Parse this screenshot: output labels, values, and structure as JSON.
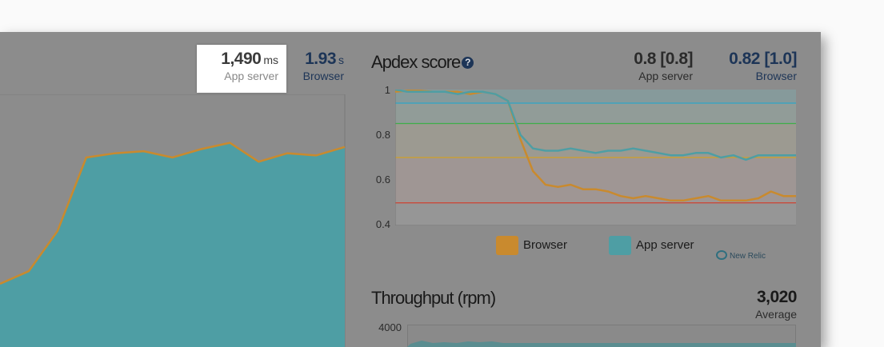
{
  "response_time": {
    "app_server": {
      "value": "1,490",
      "unit": "ms",
      "label": "App server"
    },
    "browser": {
      "value": "1.93",
      "unit": "s",
      "label": "Browser"
    }
  },
  "apdex": {
    "title": "Apdex score",
    "help_icon": "?",
    "app_server": {
      "value": "0.8 [0.8]",
      "label": "App server"
    },
    "browser": {
      "value": "0.82 [1.0]",
      "label": "Browser"
    },
    "y_ticks": [
      "1",
      "0.8",
      "0.6",
      "0.4"
    ],
    "legend": [
      {
        "label": "Browser",
        "color": "#c98a2e"
      },
      {
        "label": "App server",
        "color": "#4e9ea4"
      }
    ],
    "brand": "New Relic"
  },
  "throughput": {
    "title": "Throughput (rpm)",
    "value": "3,020",
    "label": "Average",
    "y_ticks": [
      "4000"
    ]
  },
  "colors": {
    "panel_bg": "#8c8c8c",
    "app_series": "#4e9ea4",
    "browser_series": "#c98a2e",
    "threshold_blue": "#2ca5c8",
    "threshold_green": "#3fae49",
    "threshold_yellow": "#cfa126",
    "threshold_red": "#c84a3a"
  },
  "chart_data": [
    {
      "type": "area",
      "title": "",
      "series": [
        {
          "values": [
            0.3,
            0.36,
            0.55,
            0.9,
            0.92,
            0.93,
            0.9,
            0.94,
            0.97,
            0.88,
            0.92,
            0.91,
            0.95
          ]
        }
      ],
      "ylim": [
        0,
        1.2
      ]
    },
    {
      "type": "line",
      "title": "Apdex score",
      "series": [
        {
          "name": "Browser",
          "values": [
            0.99,
            0.995,
            0.995,
            0.99,
            0.99,
            0.99,
            0.98,
            0.99,
            0.98,
            0.95,
            0.78,
            0.64,
            0.58,
            0.57,
            0.58,
            0.56,
            0.56,
            0.55,
            0.53,
            0.52,
            0.53,
            0.52,
            0.51,
            0.51,
            0.52,
            0.53,
            0.51,
            0.51,
            0.51,
            0.52,
            0.55,
            0.53,
            0.53
          ]
        },
        {
          "name": "App server",
          "values": [
            1.0,
            0.99,
            0.99,
            0.99,
            0.99,
            0.98,
            0.99,
            0.99,
            0.98,
            0.95,
            0.8,
            0.74,
            0.73,
            0.73,
            0.74,
            0.73,
            0.72,
            0.73,
            0.73,
            0.74,
            0.73,
            0.72,
            0.71,
            0.71,
            0.72,
            0.72,
            0.7,
            0.71,
            0.69,
            0.71,
            0.71,
            0.71,
            0.71
          ]
        }
      ],
      "thresholds": [
        0.94,
        0.85,
        0.7,
        0.5
      ],
      "ylim": [
        0.4,
        1.0
      ]
    }
  ]
}
